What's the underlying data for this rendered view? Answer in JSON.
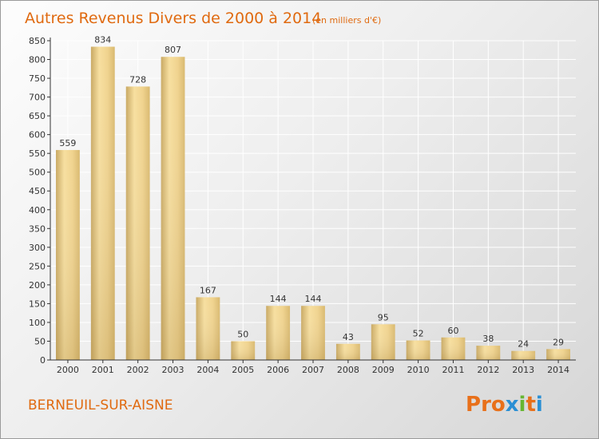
{
  "chart_data": {
    "type": "bar",
    "title": "Autres Revenus Divers de 2000 à 2014",
    "subtitle": "(en milliers d'€)",
    "categories": [
      "2000",
      "2001",
      "2002",
      "2003",
      "2004",
      "2005",
      "2006",
      "2007",
      "2008",
      "2009",
      "2010",
      "2011",
      "2012",
      "2013",
      "2014"
    ],
    "values": [
      559,
      834,
      728,
      807,
      167,
      50,
      144,
      144,
      43,
      95,
      52,
      60,
      38,
      24,
      29
    ],
    "ylim": [
      0,
      850
    ],
    "yticks": [
      0,
      50,
      100,
      150,
      200,
      250,
      300,
      350,
      400,
      450,
      500,
      550,
      600,
      650,
      700,
      750,
      800,
      850
    ],
    "grid": true,
    "bar_color": "#ecd08a"
  },
  "commune": "BERNEUIL-SUR-AISNE",
  "logo": {
    "letters": [
      "P",
      "r",
      "o",
      "x",
      "i",
      "t",
      "i"
    ],
    "colors": [
      "#e8701a",
      "#e8701a",
      "#e8701a",
      "#2a8fd4",
      "#67b631",
      "#e8701a",
      "#2a8fd4"
    ]
  },
  "colors": {
    "title": "#e06a10",
    "grid": "#ffffff",
    "axis": "#333333"
  }
}
